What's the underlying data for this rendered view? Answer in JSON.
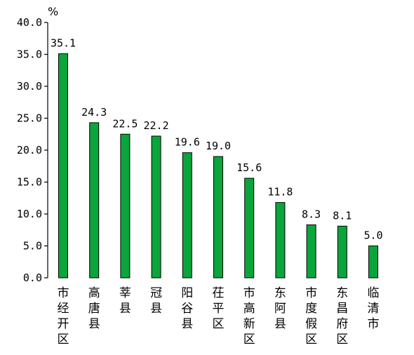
{
  "chart_data": {
    "type": "bar",
    "categories": [
      "市经开区",
      "高唐县",
      "莘县",
      "冠县",
      "阳谷县",
      "茌平区",
      "市高新区",
      "东阿县",
      "市度假区",
      "东昌府区",
      "临清市"
    ],
    "values": [
      35.1,
      24.3,
      22.5,
      22.2,
      19.6,
      19.0,
      15.6,
      11.8,
      8.3,
      8.1,
      5.0
    ],
    "data_labels": [
      "35.1",
      "24.3",
      "22.5",
      "22.2",
      "19.6",
      "19.0",
      "15.6",
      "11.8",
      "8.3",
      "8.1",
      "5.0"
    ],
    "y_ticks": [
      "0.0",
      "5.0",
      "10.0",
      "15.0",
      "20.0",
      "25.0",
      "30.0",
      "35.0",
      "40.0"
    ],
    "y_unit": "%",
    "ylim": [
      0,
      40
    ],
    "grid": false,
    "legend": "none",
    "bar_color": "#0aa53c",
    "title": "",
    "xlabel": "",
    "ylabel": ""
  }
}
